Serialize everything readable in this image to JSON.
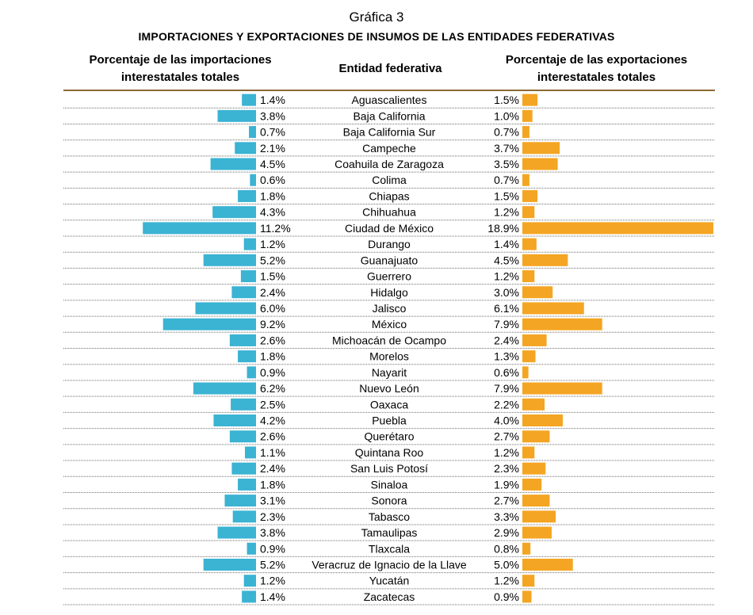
{
  "title": "Gráfica 3",
  "subtitle": "Importaciones y exportaciones de insumos de las entidades federativas",
  "headers": {
    "left": "Porcentaje de las importaciones interestatales totales",
    "center": "Entidad federativa",
    "right": "Porcentaje de las exportaciones interestatales totales"
  },
  "colors": {
    "imports": "#3BB3D3",
    "exports": "#F4A523",
    "axis_line": "#8B6A33"
  },
  "chart_data": {
    "type": "bar",
    "orientation": "horizontal",
    "layout": "butterfly",
    "categories": [
      "Aguascalientes",
      "Baja California",
      "Baja California Sur",
      "Campeche",
      "Coahuila de Zaragoza",
      "Colima",
      "Chiapas",
      "Chihuahua",
      "Ciudad de México",
      "Durango",
      "Guanajuato",
      "Guerrero",
      "Hidalgo",
      "Jalisco",
      "México",
      "Michoacán de Ocampo",
      "Morelos",
      "Nayarit",
      "Nuevo León",
      "Oaxaca",
      "Puebla",
      "Querétaro",
      "Quintana Roo",
      "San Luis Potosí",
      "Sinaloa",
      "Sonora",
      "Tabasco",
      "Tamaulipas",
      "Tlaxcala",
      "Veracruz de Ignacio de la Llave",
      "Yucatán",
      "Zacatecas"
    ],
    "series": [
      {
        "name": "Porcentaje de las importaciones interestatales totales",
        "side": "left",
        "values": [
          1.4,
          3.8,
          0.7,
          2.1,
          4.5,
          0.6,
          1.8,
          4.3,
          11.2,
          1.2,
          5.2,
          1.5,
          2.4,
          6.0,
          9.2,
          2.6,
          1.8,
          0.9,
          6.2,
          2.5,
          4.2,
          2.6,
          1.1,
          2.4,
          1.8,
          3.1,
          2.3,
          3.8,
          0.9,
          5.2,
          1.2,
          1.4
        ],
        "labels": [
          "1.4%",
          "3.8%",
          "0.7%",
          "2.1%",
          "4.5%",
          "0.6%",
          "1.8%",
          "4.3%",
          "11.2%",
          "1.2%",
          "5.2%",
          "1.5%",
          "2.4%",
          "6.0%",
          "9.2%",
          "2.6%",
          "1.8%",
          "0.9%",
          "6.2%",
          "2.5%",
          "4.2%",
          "2.6%",
          "1.1%",
          "2.4%",
          "1.8%",
          "3.1%",
          "2.3%",
          "3.8%",
          "0.9%",
          "5.2%",
          "1.2%",
          "1.4%"
        ]
      },
      {
        "name": "Porcentaje de las exportaciones interestatales totales",
        "side": "right",
        "values": [
          1.5,
          1.0,
          0.7,
          3.7,
          3.5,
          0.7,
          1.5,
          1.2,
          18.9,
          1.4,
          4.5,
          1.2,
          3.0,
          6.1,
          7.9,
          2.4,
          1.3,
          0.6,
          7.9,
          2.2,
          4.0,
          2.7,
          1.2,
          2.3,
          1.9,
          2.7,
          3.3,
          2.9,
          0.8,
          5.0,
          1.2,
          0.9
        ],
        "labels": [
          "1.5%",
          "1.0%",
          "0.7%",
          "3.7%",
          "3.5%",
          "0.7%",
          "1.5%",
          "1.2%",
          "18.9%",
          "1.4%",
          "4.5%",
          "1.2%",
          "3.0%",
          "6.1%",
          "7.9%",
          "2.4%",
          "1.3%",
          "0.6%",
          "7.9%",
          "2.2%",
          "4.0%",
          "2.7%",
          "1.2%",
          "2.3%",
          "1.9%",
          "2.7%",
          "3.3%",
          "2.9%",
          "0.8%",
          "5.0%",
          "1.2%",
          "0.9%"
        ]
      }
    ]
  }
}
